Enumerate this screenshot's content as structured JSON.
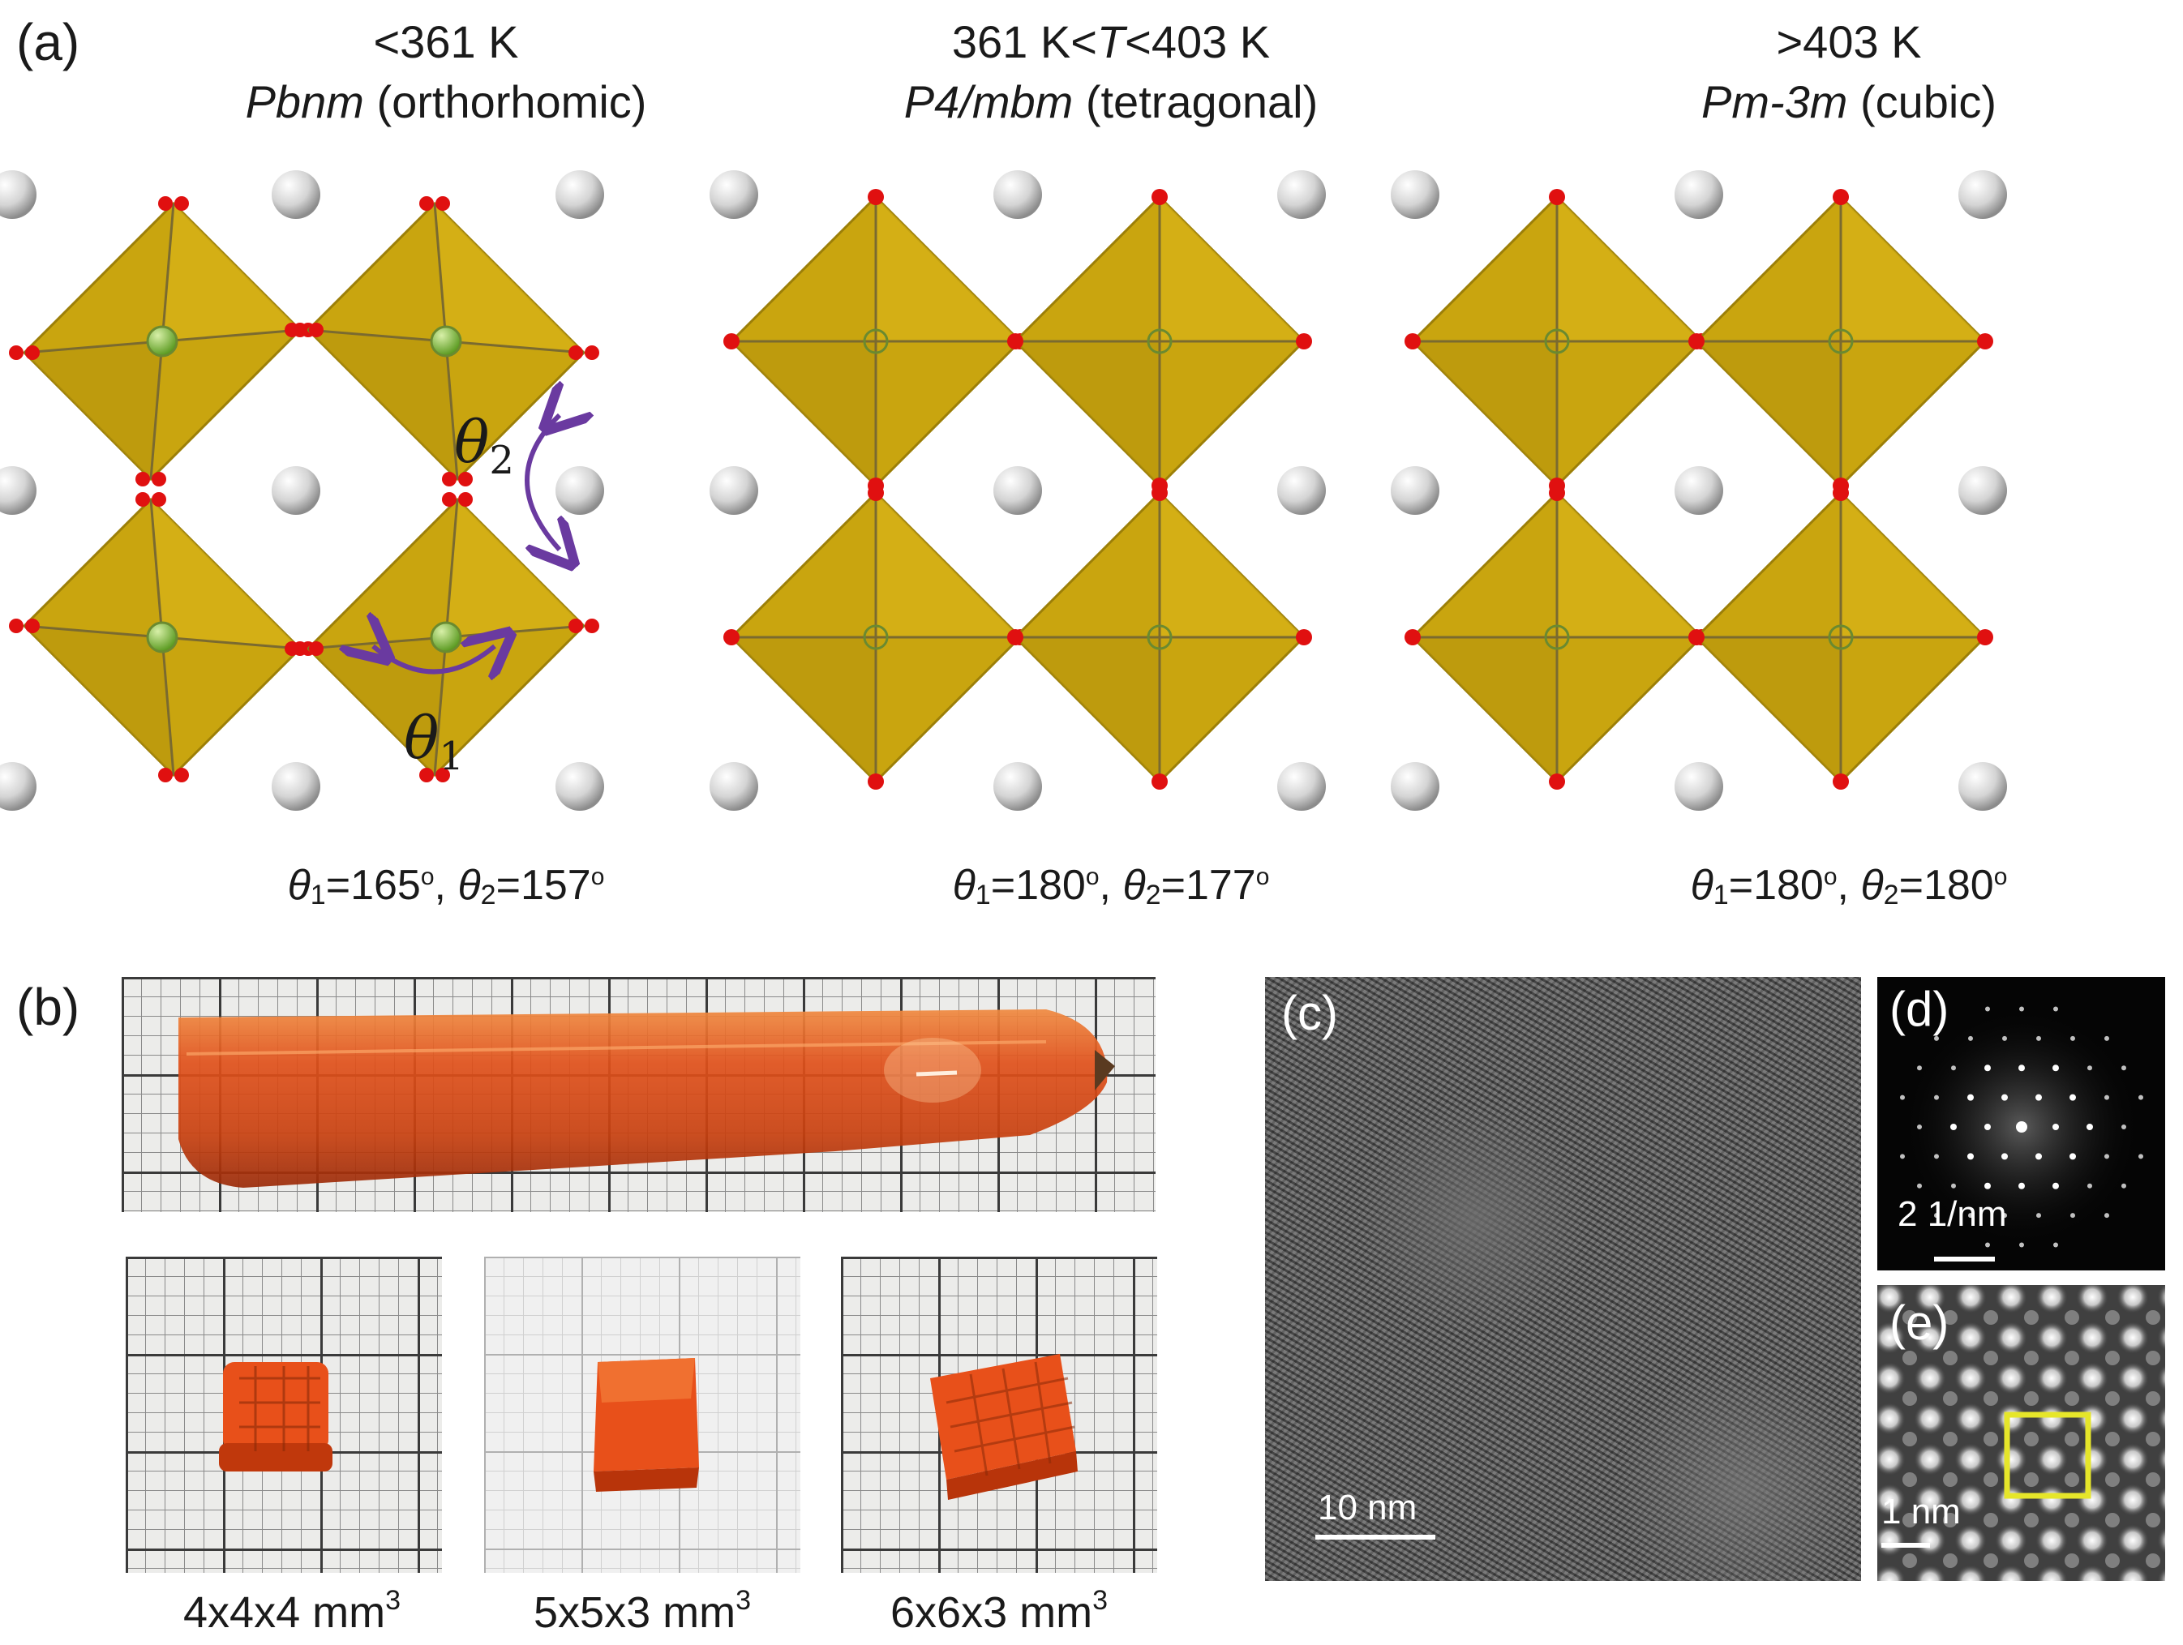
{
  "panel_labels": {
    "a": "(a)",
    "b": "(b)",
    "c": "(c)",
    "d": "(d)",
    "e": "(e)"
  },
  "phases": [
    {
      "temp": "<361 K",
      "group": "Pbnm",
      "system": "(orthorhomic)",
      "theta1": "165",
      "theta2": "157"
    },
    {
      "temp_pre": "361 K<",
      "temp_var": "T",
      "temp_post": "<403 K",
      "group": "P4/mbm",
      "system": "(tetragonal)",
      "theta1": "180",
      "theta2": "177"
    },
    {
      "temp": ">403 K",
      "group": "Pm-3m",
      "system": "(cubic)",
      "theta1": "180",
      "theta2": "180"
    }
  ],
  "angle_symbols": {
    "theta": "θ",
    "sub1": "1",
    "sub2": "2",
    "eq": "=",
    "sep": ", ",
    "deg": "o"
  },
  "crystals": [
    {
      "size": "4x4x4 mm",
      "exp": "3"
    },
    {
      "size": "5x5x3 mm",
      "exp": "3"
    },
    {
      "size": "6x6x3 mm",
      "exp": "3"
    }
  ],
  "scale_bars": {
    "c": "10 nm",
    "d": "2 1/nm",
    "e": "1 nm"
  },
  "colors": {
    "octahedron": "#c9a50f",
    "octahedron_dark": "#9c7f08",
    "oxygen": "#e01010",
    "a_site": "#d8d8d8",
    "b_site": "#7fc23a",
    "arrow": "#6a3aa0",
    "crystal": "#e8501a",
    "box": "#e6e62a"
  }
}
